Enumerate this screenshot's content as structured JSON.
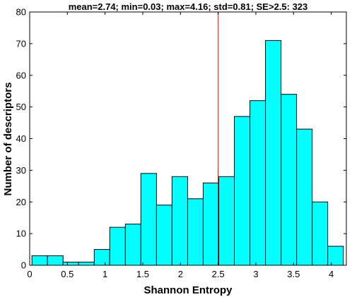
{
  "chart_data": {
    "type": "bar",
    "title": "mean=2.74; min=0.03; max=4.16; std=0.81; SE>2.5: 323",
    "xlabel": "Shannon Entropy",
    "ylabel": "Number of descriptors",
    "xlim": [
      0,
      4.2
    ],
    "ylim": [
      0,
      80
    ],
    "xticks": [
      "0",
      "0.5",
      "1",
      "1.5",
      "2",
      "2.5",
      "3",
      "3.5",
      "4"
    ],
    "yticks": [
      "0",
      "10",
      "20",
      "30",
      "40",
      "50",
      "60",
      "70",
      "80"
    ],
    "bin_edges": [
      0.03,
      0.236,
      0.443,
      0.649,
      0.856,
      1.062,
      1.269,
      1.475,
      1.682,
      1.888,
      2.095,
      2.301,
      2.508,
      2.714,
      2.921,
      3.127,
      3.334,
      3.54,
      3.747,
      3.953,
      4.16
    ],
    "values": [
      3,
      3,
      1,
      1,
      5,
      12,
      13,
      29,
      19,
      28,
      21,
      26,
      28,
      47,
      52,
      71,
      54,
      43,
      20,
      6
    ],
    "vline": 2.5,
    "colors": {
      "bar": "#00ffff",
      "vline": "#ff0000"
    },
    "grid": false
  }
}
